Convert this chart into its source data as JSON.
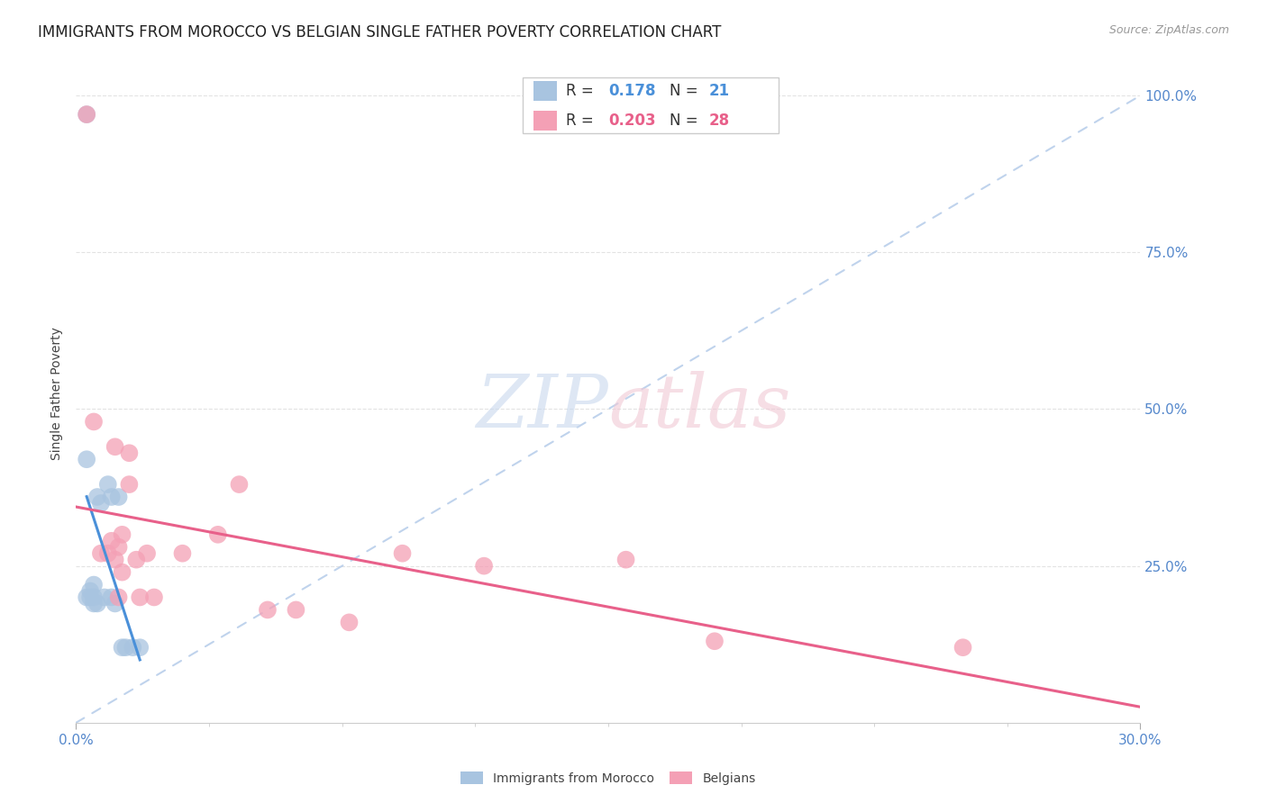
{
  "title": "IMMIGRANTS FROM MOROCCO VS BELGIAN SINGLE FATHER POVERTY CORRELATION CHART",
  "source": "Source: ZipAtlas.com",
  "ylabel": "Single Father Poverty",
  "ytick_labels": [
    "100.0%",
    "75.0%",
    "50.0%",
    "25.0%"
  ],
  "ytick_values": [
    1.0,
    0.75,
    0.5,
    0.25
  ],
  "xmin": 0.0,
  "xmax": 0.3,
  "ymin": 0.0,
  "ymax": 1.05,
  "r_morocco": 0.178,
  "n_morocco": 21,
  "r_belgian": 0.203,
  "n_belgian": 28,
  "morocco_color": "#a8c4e0",
  "belgian_color": "#f4a0b5",
  "trendline_morocco_color": "#4a90d9",
  "trendline_belgian_color": "#e8608a",
  "diagonal_color": "#b0c8e8",
  "background_color": "#ffffff",
  "grid_color": "#e0e0e0",
  "title_color": "#222222",
  "axis_label_color": "#5588cc",
  "morocco_x": [
    0.003,
    0.003,
    0.004,
    0.004,
    0.005,
    0.005,
    0.005,
    0.006,
    0.006,
    0.007,
    0.008,
    0.009,
    0.01,
    0.01,
    0.011,
    0.012,
    0.013,
    0.014,
    0.016,
    0.018,
    0.003
  ],
  "morocco_y": [
    0.97,
    0.2,
    0.21,
    0.2,
    0.22,
    0.2,
    0.19,
    0.36,
    0.19,
    0.35,
    0.2,
    0.38,
    0.36,
    0.2,
    0.19,
    0.36,
    0.12,
    0.12,
    0.12,
    0.12,
    0.42
  ],
  "belgian_x": [
    0.003,
    0.005,
    0.007,
    0.009,
    0.01,
    0.011,
    0.011,
    0.012,
    0.012,
    0.013,
    0.013,
    0.015,
    0.015,
    0.017,
    0.018,
    0.02,
    0.022,
    0.03,
    0.04,
    0.046,
    0.054,
    0.062,
    0.077,
    0.092,
    0.115,
    0.155,
    0.18,
    0.25
  ],
  "belgian_y": [
    0.97,
    0.48,
    0.27,
    0.27,
    0.29,
    0.26,
    0.44,
    0.28,
    0.2,
    0.3,
    0.24,
    0.38,
    0.43,
    0.26,
    0.2,
    0.27,
    0.2,
    0.27,
    0.3,
    0.38,
    0.18,
    0.18,
    0.16,
    0.27,
    0.25,
    0.26,
    0.13,
    0.12
  ],
  "watermark_zip_color": "#c8d8ee",
  "watermark_atlas_color": "#f0c8d4",
  "title_fontsize": 12,
  "axis_fontsize": 11,
  "legend_fontsize": 12,
  "marker_size": 200
}
